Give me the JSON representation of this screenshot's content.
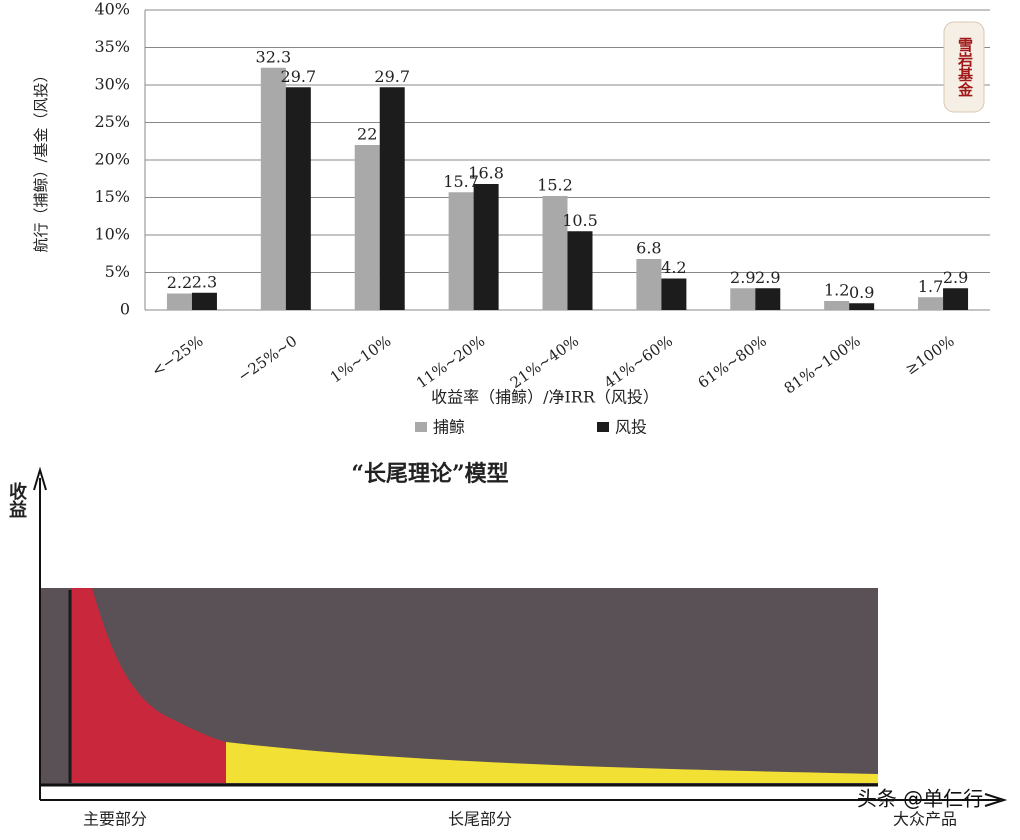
{
  "chart_data": {
    "type": "bar",
    "y_label": "航行（捕鲸）/基金（风投）",
    "x_label": "收益率（捕鲸）/净IRR（风投）",
    "categories": [
      "<−25%",
      "−25%~0",
      "1%~10%",
      "11%~20%",
      "21%~40%",
      "41%~60%",
      "61%~80%",
      "81%~100%",
      "≥100%"
    ],
    "series": [
      {
        "name": "捕鲸",
        "color": "#a9a9a9",
        "values": [
          2.2,
          32.3,
          22,
          15.7,
          15.2,
          6.8,
          2.9,
          1.2,
          1.7
        ]
      },
      {
        "name": "风投",
        "color": "#1c1c1c",
        "values": [
          2.3,
          29.7,
          29.7,
          16.8,
          10.5,
          4.2,
          2.9,
          0.9,
          2.9
        ]
      }
    ],
    "ylim": [
      0,
      40
    ],
    "yticks": [
      0,
      {
        "value": 5,
        "label": "5%"
      },
      {
        "value": 10,
        "label": "10%"
      },
      {
        "value": 15,
        "label": "15%"
      },
      {
        "value": 20,
        "label": "20%"
      },
      {
        "value": 25,
        "label": "25%"
      },
      {
        "value": 30,
        "label": "30%"
      },
      {
        "value": 35,
        "label": "35%"
      },
      {
        "value": 40,
        "label": "40%"
      }
    ],
    "grid": true,
    "legend": "bottom"
  },
  "logo": "雪岩基金",
  "long_tail": {
    "title": "“长尾理论”模型",
    "y_label": "收益",
    "x_labels": [
      "主要部分",
      "长尾部分",
      "大众产品"
    ]
  },
  "watermark": "头条 @单仁行"
}
